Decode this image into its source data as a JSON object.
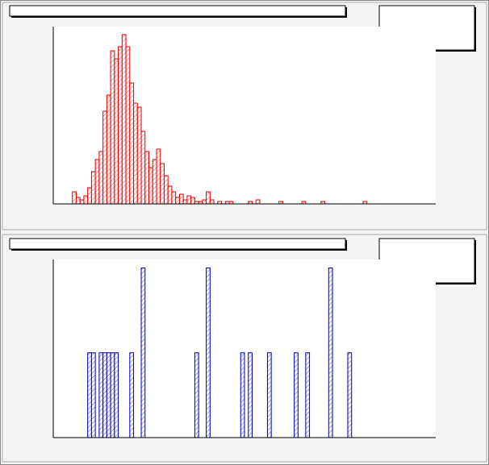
{
  "chart_data": [
    {
      "type": "histogram",
      "color": "#e00000",
      "bins": [
        0,
        1,
        2,
        3,
        4,
        5,
        6,
        7,
        8,
        9,
        10,
        11,
        12,
        13,
        14,
        15,
        16,
        17,
        18,
        19,
        20,
        21,
        22,
        23,
        24,
        25,
        26,
        27,
        28,
        29,
        30,
        31,
        32,
        33,
        34,
        35,
        36,
        37,
        38,
        39,
        40,
        41,
        42,
        43,
        44,
        45,
        46,
        47,
        48,
        49,
        50,
        51,
        52,
        53,
        54,
        55,
        56,
        57,
        58,
        59,
        60,
        61,
        62,
        63,
        64,
        65,
        66,
        67,
        68,
        69,
        70,
        71,
        72,
        73,
        74,
        75,
        76,
        77,
        78,
        79,
        80,
        81,
        82,
        83,
        84,
        85,
        86,
        87,
        88,
        89,
        90,
        91,
        92,
        93,
        94,
        95,
        96,
        97,
        98,
        99,
        100
      ],
      "values": [
        0,
        0,
        0,
        0,
        0,
        15,
        8,
        5,
        10,
        20,
        40,
        55,
        65,
        115,
        135,
        190,
        180,
        195,
        210,
        195,
        150,
        125,
        120,
        90,
        65,
        45,
        55,
        68,
        50,
        35,
        22,
        15,
        8,
        12,
        5,
        10,
        8,
        3,
        3,
        5,
        15,
        5,
        0,
        3,
        0,
        3,
        3,
        0,
        0,
        0,
        0,
        3,
        0,
        5,
        0,
        0,
        0,
        0,
        0,
        3,
        0,
        0,
        0,
        0,
        0,
        3,
        0,
        0,
        0,
        0,
        3,
        0,
        0,
        0,
        0,
        0,
        0,
        0,
        0,
        0,
        0,
        3,
        0,
        0,
        0,
        0,
        0,
        0,
        0,
        0,
        0,
        0,
        0,
        0,
        0,
        0,
        0,
        0,
        0,
        0
      ],
      "xlim": [
        0,
        100
      ],
      "ylim": [
        0,
        220
      ]
    },
    {
      "type": "histogram",
      "color": "#0000b0",
      "bins": [
        0,
        1,
        2,
        3,
        4,
        5,
        6,
        7,
        8,
        9,
        10,
        11,
        12,
        13,
        14,
        15,
        16,
        17,
        18,
        19,
        20,
        21,
        22,
        23,
        24,
        25,
        26,
        27,
        28,
        29,
        30,
        31,
        32,
        33,
        34,
        35,
        36,
        37,
        38,
        39,
        40,
        41,
        42,
        43,
        44,
        45,
        46,
        47,
        48,
        49,
        50,
        51,
        52,
        53,
        54,
        55,
        56,
        57,
        58,
        59,
        60,
        61,
        62,
        63,
        64,
        65,
        66,
        67,
        68,
        69,
        70,
        71,
        72,
        73,
        74,
        75,
        76,
        77,
        78,
        79,
        80,
        81,
        82,
        83,
        84,
        85,
        86,
        87,
        88,
        89,
        90,
        91,
        92,
        93,
        94,
        95,
        96,
        97,
        98,
        99,
        100
      ],
      "values": [
        0,
        0,
        0,
        0,
        0,
        0,
        0,
        0,
        0,
        1,
        1,
        0,
        1,
        1,
        1,
        1,
        1,
        0,
        0,
        0,
        1,
        0,
        0,
        2,
        0,
        0,
        0,
        0,
        0,
        0,
        0,
        0,
        0,
        0,
        0,
        0,
        0,
        1,
        0,
        0,
        2,
        0,
        0,
        0,
        0,
        0,
        0,
        0,
        0,
        1,
        0,
        1,
        0,
        0,
        0,
        0,
        1,
        0,
        0,
        0,
        0,
        0,
        0,
        1,
        0,
        0,
        1,
        0,
        0,
        0,
        0,
        0,
        2,
        0,
        0,
        0,
        0,
        1,
        0,
        0,
        0,
        0,
        0,
        0,
        0,
        0,
        0,
        0,
        0,
        0,
        0,
        0,
        0,
        0,
        0,
        0,
        0,
        0,
        0,
        0
      ],
      "xlim": [
        0,
        100
      ],
      "ylim": [
        0,
        2.1
      ]
    }
  ]
}
